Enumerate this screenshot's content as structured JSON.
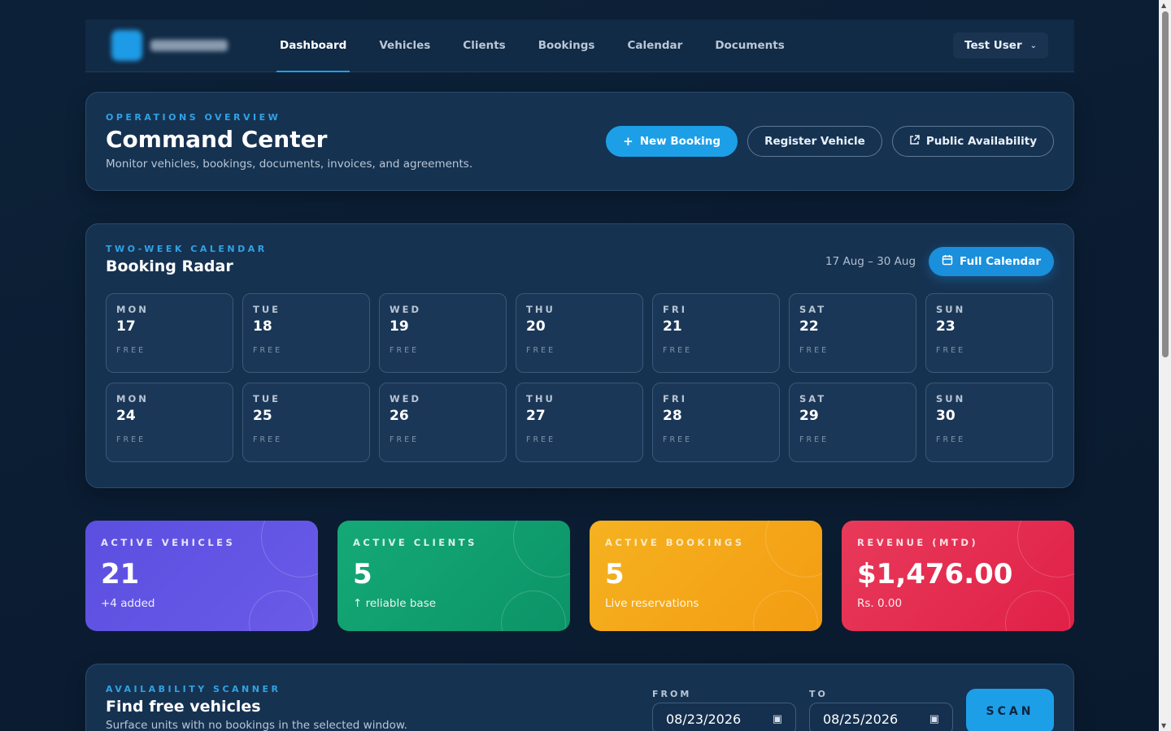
{
  "nav": {
    "items": [
      {
        "label": "Dashboard",
        "active": true
      },
      {
        "label": "Vehicles"
      },
      {
        "label": "Clients"
      },
      {
        "label": "Bookings"
      },
      {
        "label": "Calendar"
      },
      {
        "label": "Documents"
      }
    ],
    "user": "Test User"
  },
  "hero": {
    "eyebrow": "OPERATIONS OVERVIEW",
    "title": "Command Center",
    "subtitle": "Monitor vehicles, bookings, documents, invoices, and agreements.",
    "new_booking": "New Booking",
    "register_vehicle": "Register Vehicle",
    "public_availability": "Public Availability"
  },
  "radar": {
    "eyebrow": "TWO-WEEK CALENDAR",
    "title": "Booking Radar",
    "range": "17 Aug – 30 Aug",
    "full_calendar": "Full Calendar",
    "days": [
      {
        "dow": "MON",
        "num": "17",
        "status": "FREE"
      },
      {
        "dow": "TUE",
        "num": "18",
        "status": "FREE"
      },
      {
        "dow": "WED",
        "num": "19",
        "status": "FREE"
      },
      {
        "dow": "THU",
        "num": "20",
        "status": "FREE"
      },
      {
        "dow": "FRI",
        "num": "21",
        "status": "FREE"
      },
      {
        "dow": "SAT",
        "num": "22",
        "status": "FREE"
      },
      {
        "dow": "SUN",
        "num": "23",
        "status": "FREE"
      },
      {
        "dow": "MON",
        "num": "24",
        "status": "FREE"
      },
      {
        "dow": "TUE",
        "num": "25",
        "status": "FREE"
      },
      {
        "dow": "WED",
        "num": "26",
        "status": "FREE"
      },
      {
        "dow": "THU",
        "num": "27",
        "status": "FREE"
      },
      {
        "dow": "FRI",
        "num": "28",
        "status": "FREE"
      },
      {
        "dow": "SAT",
        "num": "29",
        "status": "FREE"
      },
      {
        "dow": "SUN",
        "num": "30",
        "status": "FREE"
      }
    ]
  },
  "stats": [
    {
      "label": "ACTIVE VEHICLES",
      "value": "21",
      "sub": "+4 added",
      "color": "#5b4fe0"
    },
    {
      "label": "ACTIVE CLIENTS",
      "value": "5",
      "sub": "↑ reliable base",
      "color": "#15a977"
    },
    {
      "label": "ACTIVE BOOKINGS",
      "value": "5",
      "sub": "Live reservations",
      "color": "#f5b220"
    },
    {
      "label": "REVENUE (MTD)",
      "value": "$1,476.00",
      "sub": "Rs. 0.00",
      "color": "#e83a5a"
    }
  ],
  "scanner": {
    "eyebrow": "AVAILABILITY SCANNER",
    "title": "Find free vehicles",
    "subtitle": "Surface units with no bookings in the selected window.",
    "from_label": "FROM",
    "from_value": "08/23/2026",
    "to_label": "TO",
    "to_value": "08/25/2026",
    "scan": "SCAN"
  },
  "icons": {
    "plus": "plus-icon",
    "external": "external-link-icon",
    "calendar": "calendar-icon",
    "chevron": "chevron-down-icon"
  }
}
